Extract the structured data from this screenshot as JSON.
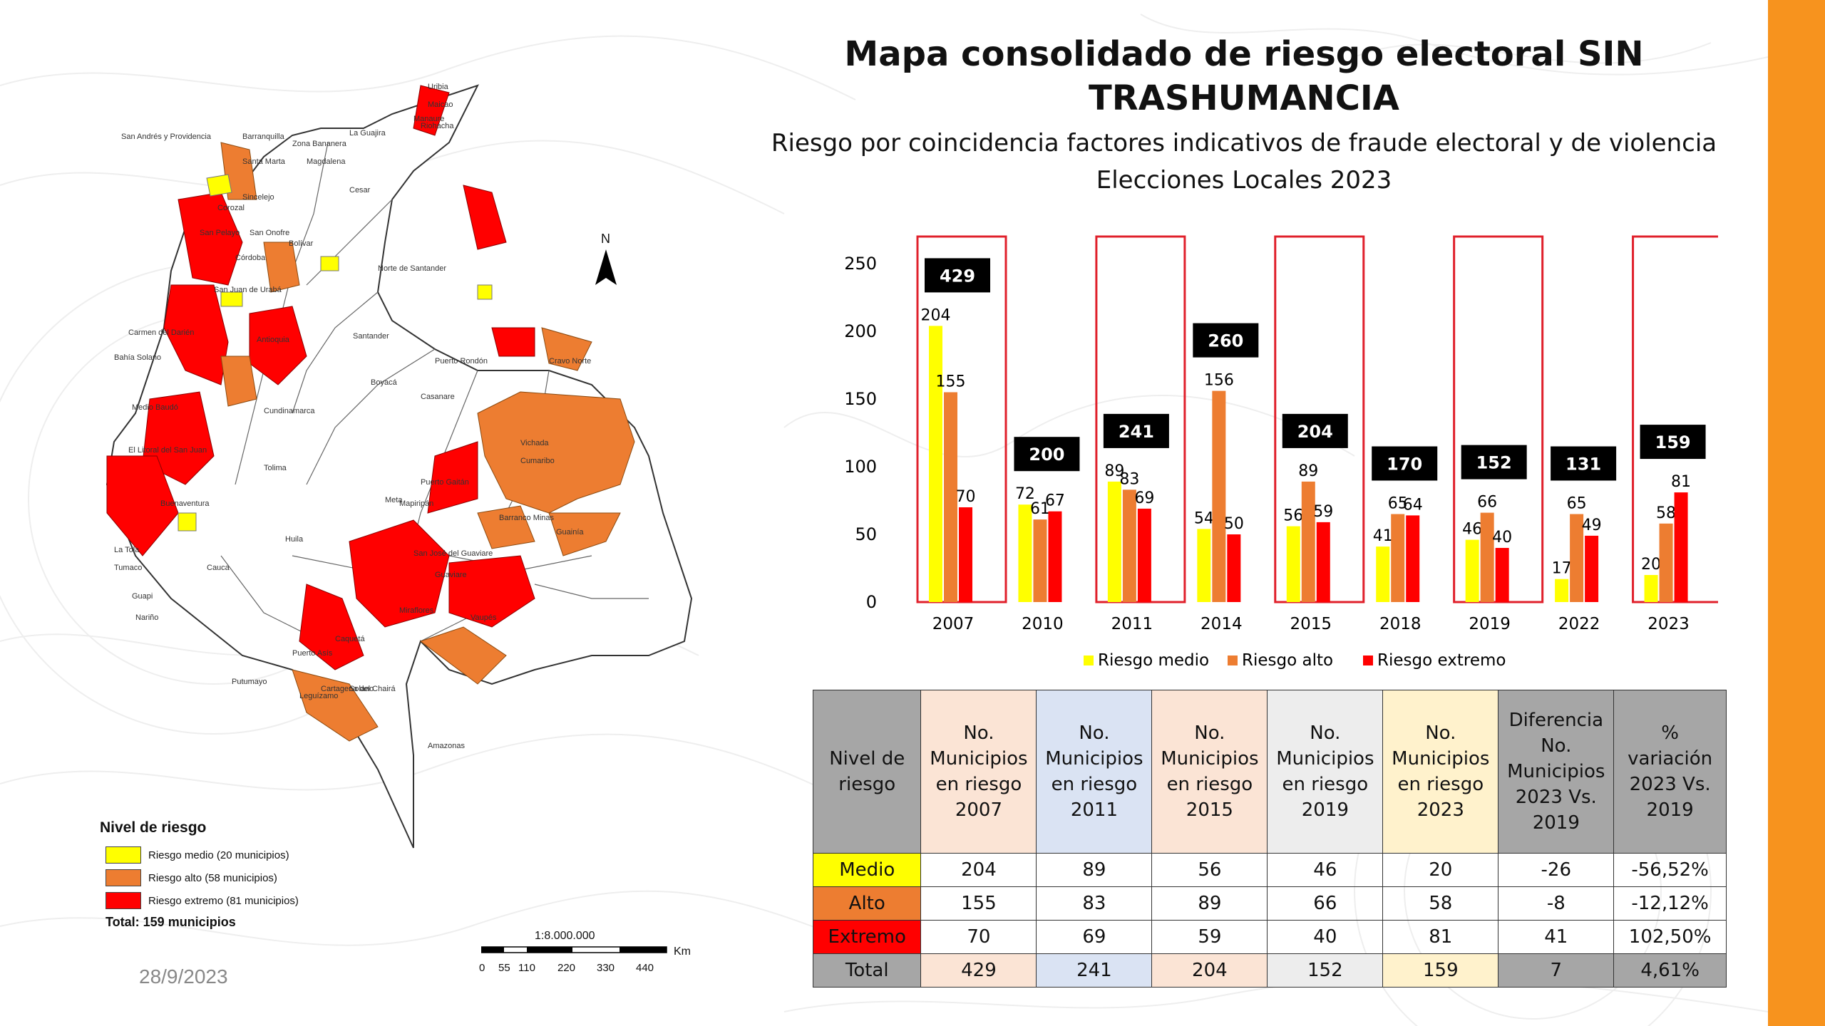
{
  "title_line1": "Mapa consolidado de riesgo electoral SIN",
  "title_line2": "TRASHUMANCIA",
  "subtitle_line1": "Riesgo por coincidencia factores indicativos de fraude electoral y de violencia",
  "subtitle_line2": "Elecciones Locales 2023",
  "date": "28/9/2023",
  "colors": {
    "medio": "#ffff00",
    "alto": "#ed7d31",
    "extremo": "#ff0000",
    "accent": "#f7931e",
    "border": "#e0202b"
  },
  "map": {
    "north_label": "N",
    "labels": [
      "San Andrés y Providencia",
      "Uribia",
      "Maicao",
      "Manaure",
      "Riohacha",
      "La Guajira",
      "Barranquilla",
      "Zona Bananera",
      "Santa Marta",
      "Magdalena",
      "Cesar",
      "Sincelejo",
      "Corozal",
      "San Pelayo",
      "San Onofre",
      "Bolívar",
      "Córdoba",
      "San Juan de Urabá",
      "Norte de Santander",
      "Carmen del Darién",
      "Bahía Solano",
      "Medio Baudó",
      "Antioquia",
      "Santander",
      "Boyacá",
      "Casanare",
      "Vichada",
      "Cumaribo",
      "Puerto Rondón",
      "Cravo Norte",
      "Puerto Gaitán",
      "Mapiripán",
      "Barranco Minas",
      "Guainía",
      "Meta",
      "Guaviare",
      "San José del Guaviare",
      "Cundinamarca",
      "Tolima",
      "Huila",
      "El Litoral del San Juan",
      "Buenaventura",
      "Tumaco",
      "Guapi",
      "La Tola",
      "Cauca",
      "Caquetá",
      "Cartagena del Chairá",
      "Solano",
      "Miraflores",
      "Vaupés",
      "Puerto Asís",
      "Leguízamo",
      "Amazonas",
      "Putumayo",
      "Nariño"
    ],
    "legend_title": "Nivel de riesgo",
    "legend_items": [
      "Riesgo medio (20 municipios)",
      "Riesgo alto (58 municipios)",
      "Riesgo extremo (81 municipios)"
    ],
    "legend_total": "Total: 159 municipios",
    "scale_ratio": "1:8.000.000",
    "scale_unit": "Km",
    "scale_ticks": [
      "0",
      "55",
      "110",
      "220",
      "330",
      "440"
    ]
  },
  "chart_data": {
    "type": "bar",
    "categories": [
      "2007",
      "2010",
      "2011",
      "2014",
      "2015",
      "2018",
      "2019",
      "2022",
      "2023"
    ],
    "series": [
      {
        "name": "Riesgo medio",
        "color": "#ffff00",
        "values": [
          204,
          72,
          89,
          54,
          56,
          41,
          46,
          17,
          20
        ]
      },
      {
        "name": "Riesgo alto",
        "color": "#ed7d31",
        "values": [
          155,
          61,
          83,
          156,
          89,
          65,
          66,
          65,
          58
        ]
      },
      {
        "name": "Riesgo extremo",
        "color": "#ff0000",
        "values": [
          70,
          67,
          69,
          50,
          59,
          64,
          40,
          49,
          81
        ]
      }
    ],
    "totals": [
      429,
      200,
      241,
      260,
      204,
      170,
      152,
      131,
      159
    ],
    "highlighted": [
      "2007",
      "2011",
      "2015",
      "2019",
      "2023"
    ],
    "y_ticks": [
      0,
      50,
      100,
      150,
      200,
      250
    ],
    "ylim": [
      0,
      250
    ],
    "legend_position": "bottom"
  },
  "table": {
    "headers": [
      "Nivel de riesgo",
      "No. Municipios en riesgo 2007",
      "No. Municipios en riesgo 2011",
      "No. Municipios en riesgo 2015",
      "No. Municipios en riesgo 2019",
      "No. Municipios en riesgo 2023",
      "Diferencia No. Municipios 2023 Vs. 2019",
      "% variación 2023 Vs. 2019"
    ],
    "header_colors": [
      "#a6a6a6",
      "#fbe4d5",
      "#dae3f3",
      "#fbe4d5",
      "#ededed",
      "#fff2cc",
      "#a6a6a6",
      "#a6a6a6"
    ],
    "rows": [
      {
        "label": "Medio",
        "color": "#ffff00",
        "values": [
          "204",
          "89",
          "56",
          "46",
          "20",
          "-26",
          "-56,52%"
        ]
      },
      {
        "label": "Alto",
        "color": "#ed7d31",
        "values": [
          "155",
          "83",
          "89",
          "66",
          "58",
          "-8",
          "-12,12%"
        ]
      },
      {
        "label": "Extremo",
        "color": "#ff0000",
        "values": [
          "70",
          "69",
          "59",
          "40",
          "81",
          "41",
          "102,50%"
        ]
      }
    ],
    "total_row": {
      "label": "Total",
      "values": [
        "429",
        "241",
        "204",
        "152",
        "159",
        "7",
        "4,61%"
      ]
    }
  }
}
